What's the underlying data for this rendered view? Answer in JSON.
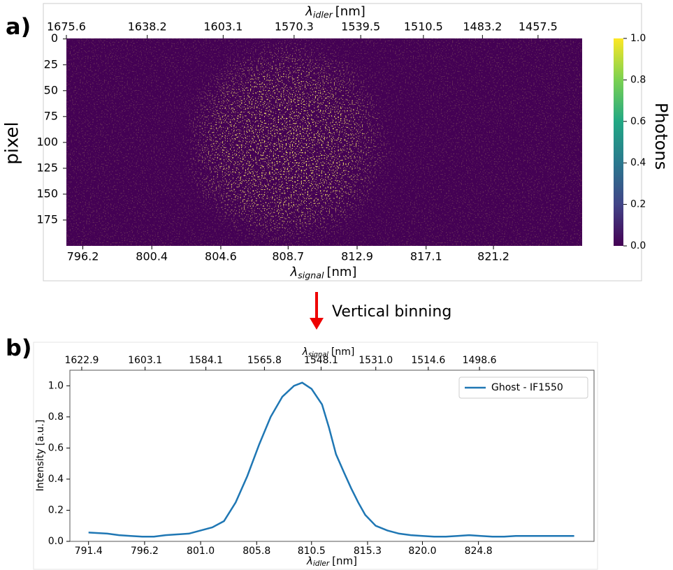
{
  "chart_data": [
    {
      "type": "heatmap",
      "panel_label": "a)",
      "xlabel": {
        "symbol": "λ",
        "subscript": "signal",
        "unit": "[nm]"
      },
      "x2label": {
        "symbol": "λ",
        "subscript": "idler",
        "unit": "[nm]"
      },
      "ylabel": "pixel",
      "colorbar_label": "Photons",
      "colormap": "viridis",
      "xlim": [
        795.2,
        826.6
      ],
      "xticks": [
        796.2,
        800.4,
        804.6,
        808.7,
        812.9,
        817.1,
        821.2
      ],
      "x2lim": [
        1675.6,
        1437.1
      ],
      "x2ticks": [
        1675.6,
        1638.2,
        1603.1,
        1570.3,
        1539.5,
        1510.5,
        1483.2,
        1457.5
      ],
      "ylim": [
        200,
        -0.5
      ],
      "yticks": [
        0,
        25,
        50,
        75,
        100,
        125,
        150,
        175
      ],
      "clim": [
        0,
        1
      ],
      "colorbar_ticks": [
        {
          "value": 0,
          "label": "0.0"
        },
        {
          "value": 0.2,
          "label": "0.2"
        },
        {
          "value": 0.4,
          "label": "0.4"
        },
        {
          "value": 0.6,
          "label": "0.6"
        },
        {
          "value": 0.8,
          "label": "0.8"
        },
        {
          "value": 1,
          "label": "1.0"
        }
      ]
    },
    {
      "type": "line",
      "panel_label": "b)",
      "annotation": "Vertical binning",
      "xlabel": {
        "symbol": "λ",
        "subscript": "idler",
        "unit": "[nm]"
      },
      "x2label": {
        "symbol": "λ",
        "subscript": "signal",
        "unit": "[nm]"
      },
      "ylabel": "Intensity [a.u.]",
      "x": [
        791.4,
        793,
        794,
        795,
        796,
        797,
        798,
        799,
        800,
        801,
        802,
        803,
        804,
        805,
        806,
        807,
        808,
        809,
        809.7,
        810.5,
        811.4,
        812,
        812.6,
        813.3,
        813.9,
        814.5,
        815.1,
        816,
        817,
        818,
        819,
        820,
        821,
        822,
        823,
        824,
        825,
        826,
        827,
        828,
        830,
        833
      ],
      "series": [
        {
          "name": "Ghost - IF1550",
          "color": "#1f77b4",
          "values": [
            0.057,
            0.05,
            0.04,
            0.035,
            0.03,
            0.03,
            0.04,
            0.045,
            0.05,
            0.07,
            0.09,
            0.13,
            0.25,
            0.42,
            0.62,
            0.8,
            0.93,
            1.0,
            1.02,
            0.98,
            0.88,
            0.73,
            0.56,
            0.44,
            0.34,
            0.25,
            0.17,
            0.1,
            0.07,
            0.05,
            0.04,
            0.035,
            0.03,
            0.03,
            0.035,
            0.04,
            0.035,
            0.03,
            0.03,
            0.035,
            0.035,
            0.035
          ]
        }
      ],
      "xlim": [
        789.8,
        834.7
      ],
      "xticks": [
        791.4,
        796.2,
        {
          "value": 801,
          "label": "801.0"
        },
        805.8,
        810.5,
        815.3,
        {
          "value": 820,
          "label": "820.0"
        },
        824.8
      ],
      "x2lim": [
        1626.6,
        1462.8
      ],
      "x2ticks": [
        1622.9,
        1603.1,
        1584.1,
        1565.8,
        1548.1,
        {
          "value": 1531,
          "label": "1531.0"
        },
        1514.6,
        1498.6
      ],
      "ylim": [
        0,
        1.1
      ],
      "yticks": [
        {
          "value": 0,
          "label": "0.0"
        },
        {
          "value": 0.2,
          "label": "0.2"
        },
        {
          "value": 0.4,
          "label": "0.4"
        },
        {
          "value": 0.6,
          "label": "0.6"
        },
        {
          "value": 0.8,
          "label": "0.8"
        },
        {
          "value": 1,
          "label": "1.0"
        }
      ],
      "legend": "upper right"
    }
  ]
}
